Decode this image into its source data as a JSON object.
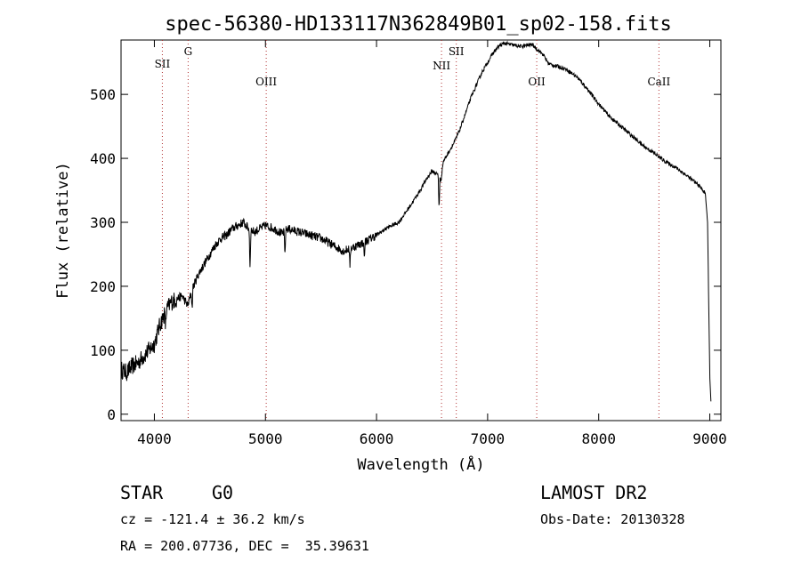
{
  "chart_data": {
    "type": "line",
    "title": "spec-56380-HD133117N362849B01_sp02-158.fits",
    "xlabel": "Wavelength (Å)",
    "ylabel": "Flux (relative)",
    "xlim": [
      3700,
      9100
    ],
    "ylim": [
      -10,
      585
    ],
    "x_ticks": [
      4000,
      5000,
      6000,
      7000,
      8000,
      9000
    ],
    "y_ticks": [
      0,
      100,
      200,
      300,
      400,
      500
    ],
    "grid": false,
    "series": [
      {
        "x": [
          3700,
          3750,
          3800,
          3850,
          3900,
          3950,
          4000,
          4050,
          4100,
          4150,
          4200,
          4250,
          4300,
          4350,
          4400,
          4450,
          4500,
          4550,
          4600,
          4650,
          4700,
          4750,
          4800,
          4850,
          4900,
          4950,
          5000,
          5050,
          5100,
          5150,
          5200,
          5300,
          5400,
          5500,
          5600,
          5700,
          5800,
          5900,
          6000,
          6100,
          6200,
          6300,
          6400,
          6450,
          6500,
          6550,
          6580,
          6600,
          6650,
          6700,
          6750,
          6800,
          6850,
          6900,
          6950,
          7000,
          7050,
          7100,
          7150,
          7200,
          7300,
          7400,
          7500,
          7550,
          7600,
          7700,
          7800,
          7900,
          8000,
          8100,
          8200,
          8300,
          8400,
          8500,
          8600,
          8700,
          8800,
          8900,
          8960,
          8980,
          9000,
          9010
        ],
        "y": [
          70,
          65,
          75,
          80,
          90,
          100,
          110,
          140,
          160,
          175,
          180,
          185,
          170,
          200,
          220,
          235,
          250,
          265,
          275,
          280,
          290,
          295,
          300,
          290,
          285,
          290,
          295,
          292,
          288,
          282,
          290,
          285,
          280,
          275,
          265,
          255,
          262,
          270,
          280,
          292,
          300,
          325,
          352,
          368,
          380,
          375,
          365,
          395,
          410,
          425,
          445,
          470,
          495,
          515,
          535,
          550,
          565,
          575,
          580,
          578,
          575,
          578,
          562,
          548,
          545,
          540,
          528,
          508,
          485,
          465,
          450,
          435,
          420,
          408,
          395,
          385,
          372,
          358,
          345,
          300,
          60,
          20
        ]
      }
    ],
    "line_markers": [
      {
        "label": "SII",
        "x": 4072
      },
      {
        "label": "G",
        "x": 4304
      },
      {
        "label": "OIII",
        "x": 5007
      },
      {
        "label": "NII",
        "x": 6585
      },
      {
        "label": "SII",
        "x": 6718
      },
      {
        "label": "OII",
        "x": 7442
      },
      {
        "label": "CaII",
        "x": 8542
      }
    ]
  },
  "info": {
    "class": "STAR",
    "subclass": "G0",
    "survey": "LAMOST DR2",
    "cz": "cz = -121.4 ± 36.2 km/s",
    "obs_date": "Obs-Date: 20130328",
    "radec": "RA = 200.07736, DEC =  35.39631"
  }
}
